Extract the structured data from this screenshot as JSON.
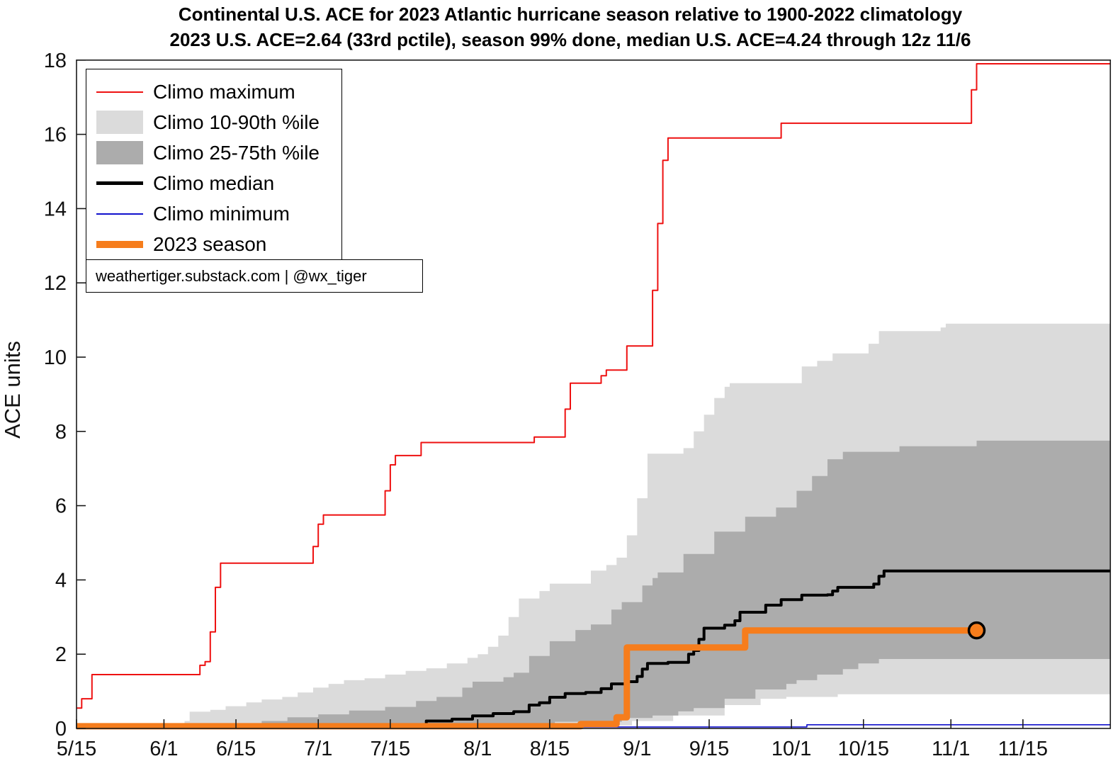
{
  "header": {
    "title_line1": "Continental U.S. ACE for 2023 Atlantic hurricane season relative to 1900-2022 climatology",
    "title_line2": "2023 U.S. ACE=2.64 (33rd pctile), season 99% done, median U.S. ACE=4.24 through 12z 11/6"
  },
  "watermark": "weathertiger.substack.com | @wx_tiger",
  "chart_data": {
    "type": "line",
    "title": "Continental U.S. ACE for 2023 Atlantic hurricane season relative to 1900-2022 climatology",
    "subtitle": "2023 U.S. ACE=2.64 (33rd pctile), season 99% done, median U.S. ACE=4.24 through 12z 11/6",
    "xlabel": "",
    "ylabel": "ACE units",
    "ylim": [
      0,
      18
    ],
    "y_tick_step": 2,
    "x_unit": "days since 5/15",
    "xlim": [
      0,
      201
    ],
    "grid": false,
    "legend_position": "upper-left",
    "x_ticks": [
      {
        "day": 0,
        "label": "5/15"
      },
      {
        "day": 17,
        "label": "6/1"
      },
      {
        "day": 31,
        "label": "6/15"
      },
      {
        "day": 47,
        "label": "7/1"
      },
      {
        "day": 61,
        "label": "7/15"
      },
      {
        "day": 78,
        "label": "8/1"
      },
      {
        "day": 92,
        "label": "8/15"
      },
      {
        "day": 109,
        "label": "9/1"
      },
      {
        "day": 123,
        "label": "9/15"
      },
      {
        "day": 139,
        "label": "10/1"
      },
      {
        "day": 153,
        "label": "10/15"
      },
      {
        "day": 170,
        "label": "11/1"
      },
      {
        "day": 184,
        "label": "11/15"
      }
    ],
    "legend": [
      {
        "label": "Climo maximum",
        "swatch": "line",
        "color": "#EE1111",
        "thickness": 2
      },
      {
        "label": "Climo 10-90th %ile",
        "swatch": "patch",
        "color": "#DBDBDB"
      },
      {
        "label": "Climo 25-75th %ile",
        "swatch": "patch",
        "color": "#ACACAC"
      },
      {
        "label": "Climo median",
        "swatch": "line",
        "color": "#000000",
        "thickness": 5
      },
      {
        "label": "Climo minimum",
        "swatch": "line",
        "color": "#1111CC",
        "thickness": 2
      },
      {
        "label": "2023 season",
        "swatch": "line",
        "color": "#F67D1C",
        "thickness": 10
      }
    ],
    "bands": [
      {
        "name": "Climo 10-90th %ile",
        "color": "#DBDBDB",
        "upper": [
          [
            20,
            0.05
          ],
          [
            21,
            0.2
          ],
          [
            22,
            0.45
          ],
          [
            26,
            0.5
          ],
          [
            29,
            0.6
          ],
          [
            33,
            0.7
          ],
          [
            36,
            0.78
          ],
          [
            40,
            0.85
          ],
          [
            43,
            0.97
          ],
          [
            46,
            1.1
          ],
          [
            49,
            1.2
          ],
          [
            52,
            1.3
          ],
          [
            56,
            1.35
          ],
          [
            60,
            1.45
          ],
          [
            64,
            1.55
          ],
          [
            68,
            1.62
          ],
          [
            72,
            1.75
          ],
          [
            76,
            1.9
          ],
          [
            78,
            2.0
          ],
          [
            80,
            2.2
          ],
          [
            82,
            2.5
          ],
          [
            84,
            3.0
          ],
          [
            86,
            3.5
          ],
          [
            90,
            3.7
          ],
          [
            92,
            3.9
          ],
          [
            100,
            4.25
          ],
          [
            103,
            4.4
          ],
          [
            105,
            4.6
          ],
          [
            107,
            5.2
          ],
          [
            109,
            6.2
          ],
          [
            111,
            7.4
          ],
          [
            118,
            7.55
          ],
          [
            120,
            8.0
          ],
          [
            122,
            8.45
          ],
          [
            124,
            8.9
          ],
          [
            126,
            9.2
          ],
          [
            127,
            9.3
          ],
          [
            140,
            9.3
          ],
          [
            141,
            9.75
          ],
          [
            144,
            9.9
          ],
          [
            147,
            10.1
          ],
          [
            154,
            10.36
          ],
          [
            156,
            10.7
          ],
          [
            168,
            10.8
          ],
          [
            169,
            10.9
          ],
          [
            201,
            10.9
          ]
        ],
        "lower": [
          [
            20,
            0
          ],
          [
            91,
            0
          ],
          [
            94,
            0.08
          ],
          [
            108,
            0.2
          ],
          [
            116,
            0.35
          ],
          [
            126,
            0.63
          ],
          [
            133,
            0.8
          ],
          [
            138,
            0.85
          ],
          [
            148,
            0.92
          ],
          [
            201,
            0.92
          ]
        ]
      },
      {
        "name": "Climo 25-75th %ile",
        "color": "#ACACAC",
        "upper": [
          [
            32,
            0.05
          ],
          [
            34,
            0.12
          ],
          [
            36,
            0.2
          ],
          [
            41,
            0.3
          ],
          [
            47,
            0.38
          ],
          [
            53,
            0.48
          ],
          [
            60,
            0.58
          ],
          [
            66,
            0.74
          ],
          [
            70,
            0.85
          ],
          [
            75,
            1.1
          ],
          [
            77,
            1.26
          ],
          [
            83,
            1.38
          ],
          [
            85,
            1.5
          ],
          [
            88,
            1.95
          ],
          [
            92,
            2.35
          ],
          [
            97,
            2.65
          ],
          [
            100,
            2.8
          ],
          [
            104,
            3.2
          ],
          [
            106,
            3.4
          ],
          [
            110,
            3.85
          ],
          [
            112,
            4.05
          ],
          [
            113,
            4.2
          ],
          [
            118,
            4.7
          ],
          [
            124,
            5.3
          ],
          [
            130,
            5.7
          ],
          [
            136,
            5.95
          ],
          [
            140,
            6.4
          ],
          [
            143,
            6.8
          ],
          [
            146,
            7.25
          ],
          [
            149,
            7.45
          ],
          [
            160,
            7.6
          ],
          [
            175,
            7.75
          ],
          [
            201,
            7.75
          ]
        ],
        "lower": [
          [
            32,
            0
          ],
          [
            86,
            0
          ],
          [
            90,
            0.1
          ],
          [
            93,
            0.18
          ],
          [
            106,
            0.28
          ],
          [
            112,
            0.35
          ],
          [
            117,
            0.46
          ],
          [
            120,
            0.55
          ],
          [
            126,
            0.8
          ],
          [
            132,
            1.05
          ],
          [
            138,
            1.2
          ],
          [
            140,
            1.3
          ],
          [
            144,
            1.45
          ],
          [
            149,
            1.6
          ],
          [
            152,
            1.75
          ],
          [
            156,
            1.87
          ],
          [
            201,
            1.87
          ]
        ]
      }
    ],
    "series": [
      {
        "name": "Climo maximum",
        "color": "#EE1111",
        "width": 2,
        "points": [
          [
            0,
            0.55
          ],
          [
            1,
            0.8
          ],
          [
            3,
            1.45
          ],
          [
            23,
            1.45
          ],
          [
            24,
            1.7
          ],
          [
            25,
            1.8
          ],
          [
            26,
            2.6
          ],
          [
            27,
            3.8
          ],
          [
            28,
            4.45
          ],
          [
            45,
            4.45
          ],
          [
            46,
            4.9
          ],
          [
            47,
            5.5
          ],
          [
            48,
            5.75
          ],
          [
            59,
            5.75
          ],
          [
            60,
            6.4
          ],
          [
            61,
            7.1
          ],
          [
            62,
            7.35
          ],
          [
            66,
            7.35
          ],
          [
            67,
            7.7
          ],
          [
            88,
            7.7
          ],
          [
            89,
            7.85
          ],
          [
            94,
            7.85
          ],
          [
            95,
            8.6
          ],
          [
            96,
            9.3
          ],
          [
            101,
            9.3
          ],
          [
            102,
            9.5
          ],
          [
            103,
            9.65
          ],
          [
            106,
            9.65
          ],
          [
            107,
            10.3
          ],
          [
            111,
            10.3
          ],
          [
            112,
            11.8
          ],
          [
            113,
            13.6
          ],
          [
            114,
            15.3
          ],
          [
            115,
            15.9
          ],
          [
            136,
            15.9
          ],
          [
            137,
            16.3
          ],
          [
            173,
            16.3
          ],
          [
            174,
            17.2
          ],
          [
            175,
            17.9
          ],
          [
            201,
            17.9
          ]
        ]
      },
      {
        "name": "Climo minimum",
        "color": "#1111CC",
        "width": 1.6,
        "points": [
          [
            0,
            0.04
          ],
          [
            140,
            0.04
          ],
          [
            142,
            0.1
          ],
          [
            201,
            0.1
          ]
        ]
      },
      {
        "name": "Climo median",
        "color": "#000000",
        "width": 4,
        "points": [
          [
            0,
            0.02
          ],
          [
            57,
            0.02
          ],
          [
            58,
            0.1
          ],
          [
            67,
            0.1
          ],
          [
            68,
            0.2
          ],
          [
            73,
            0.25
          ],
          [
            77,
            0.34
          ],
          [
            81,
            0.4
          ],
          [
            85,
            0.45
          ],
          [
            88,
            0.63
          ],
          [
            90,
            0.69
          ],
          [
            92,
            0.84
          ],
          [
            95,
            0.94
          ],
          [
            99,
            0.97
          ],
          [
            102,
            1.07
          ],
          [
            104,
            1.2
          ],
          [
            107,
            1.26
          ],
          [
            109,
            1.4
          ],
          [
            110,
            1.6
          ],
          [
            111,
            1.75
          ],
          [
            115,
            1.78
          ],
          [
            119,
            2.0
          ],
          [
            120,
            2.1
          ],
          [
            121,
            2.4
          ],
          [
            122,
            2.7
          ],
          [
            126,
            2.78
          ],
          [
            128,
            2.9
          ],
          [
            129,
            3.13
          ],
          [
            134,
            3.32
          ],
          [
            137,
            3.47
          ],
          [
            141,
            3.59
          ],
          [
            146,
            3.6
          ],
          [
            147,
            3.7
          ],
          [
            148,
            3.8
          ],
          [
            155,
            3.89
          ],
          [
            156,
            4.1
          ],
          [
            157,
            4.24
          ],
          [
            201,
            4.24
          ]
        ]
      },
      {
        "name": "2023 season",
        "color": "#F67D1C",
        "width": 9,
        "points": [
          [
            0,
            0.06
          ],
          [
            97,
            0.06
          ],
          [
            98,
            0.12
          ],
          [
            104,
            0.12
          ],
          [
            105,
            0.3
          ],
          [
            107,
            2.18
          ],
          [
            129,
            2.18
          ],
          [
            130,
            2.64
          ],
          [
            175,
            2.64
          ]
        ],
        "marker": {
          "day": 175,
          "value": 2.64,
          "label_date": "11/6",
          "radius": 11,
          "edge_color": "#000000"
        }
      }
    ],
    "key_values": {
      "season_ace_2023": 2.64,
      "season_percentile": "33rd",
      "season_done_pct": "99%",
      "median_us_ace": 4.24,
      "through": "12z 11/6"
    }
  }
}
